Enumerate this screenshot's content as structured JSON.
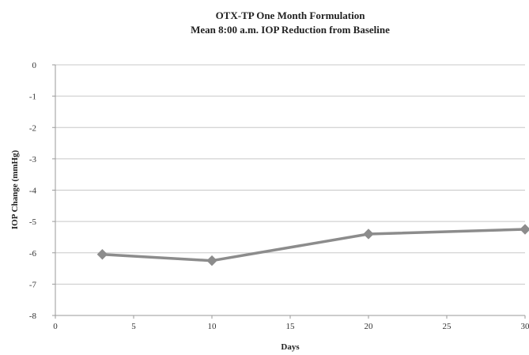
{
  "chart_data": {
    "type": "line",
    "title": "OTX-TP One Month Formulation",
    "subtitle": "Mean 8:00 a.m. IOP Reduction from Baseline",
    "xlabel": "Days",
    "ylabel": "IOP Change (mmHg)",
    "xlim": [
      0,
      30
    ],
    "ylim": [
      -8,
      0
    ],
    "xticks": [
      0,
      5,
      10,
      15,
      20,
      25,
      30
    ],
    "yticks": [
      0,
      -1,
      -2,
      -3,
      -4,
      -5,
      -6,
      -7,
      -8
    ],
    "grid": true,
    "legend": "none",
    "series": [
      {
        "x": [
          3,
          10,
          20,
          30
        ],
        "y": [
          -6.05,
          -6.25,
          -5.4,
          -5.25
        ],
        "color": "#8c8c8c",
        "marker": "diamond"
      }
    ]
  }
}
